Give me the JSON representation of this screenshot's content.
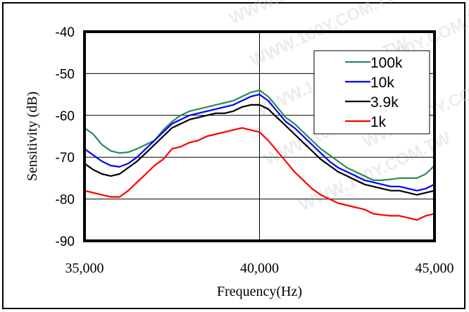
{
  "chart_data": {
    "type": "line",
    "title": "",
    "xlabel": "Frequency(Hz)",
    "ylabel": "Sensitivity  (dB)",
    "xlim": [
      35000,
      45000
    ],
    "ylim": [
      -90,
      -40
    ],
    "x_ticks": [
      {
        "value": 35000,
        "label": "35,000"
      },
      {
        "value": 40000,
        "label": "40,000"
      },
      {
        "value": 45000,
        "label": "45,000"
      }
    ],
    "y_ticks": [
      {
        "value": -40,
        "label": "-40"
      },
      {
        "value": -50,
        "label": "-50"
      },
      {
        "value": -60,
        "label": "-60"
      },
      {
        "value": -70,
        "label": "-70"
      },
      {
        "value": -80,
        "label": "-80"
      },
      {
        "value": -90,
        "label": "-90"
      }
    ],
    "grid": true,
    "legend_position": "top-right",
    "watermark": "WWW.100Y.COM.TW",
    "series": [
      {
        "name": "100k",
        "color": "#2e8b57",
        "x": [
          35000,
          35250,
          35500,
          35750,
          36000,
          36250,
          36500,
          36750,
          37000,
          37250,
          37500,
          37750,
          38000,
          38250,
          38500,
          38750,
          39000,
          39250,
          39500,
          39750,
          40000,
          40250,
          40500,
          40750,
          41000,
          41250,
          41500,
          41750,
          42000,
          42250,
          42500,
          42750,
          43000,
          43250,
          43500,
          43750,
          44000,
          44250,
          44500,
          44750,
          45000
        ],
        "y": [
          -63,
          -64.5,
          -67,
          -68.5,
          -69,
          -68.8,
          -68,
          -67,
          -66,
          -63.5,
          -61.5,
          -60,
          -59,
          -58.5,
          -58,
          -57.5,
          -57,
          -56.5,
          -55.5,
          -54.5,
          -54,
          -55.5,
          -58,
          -60.5,
          -62,
          -64,
          -66,
          -68,
          -69.5,
          -71,
          -72.5,
          -73.5,
          -74.5,
          -75.5,
          -75.5,
          -75.3,
          -75,
          -75,
          -75,
          -74,
          -72
        ]
      },
      {
        "name": "10k",
        "color": "#0000ff",
        "x": [
          35000,
          35250,
          35500,
          35750,
          36000,
          36250,
          36500,
          36750,
          37000,
          37250,
          37500,
          37750,
          38000,
          38250,
          38500,
          38750,
          39000,
          39250,
          39500,
          39750,
          40000,
          40250,
          40500,
          40750,
          41000,
          41250,
          41500,
          41750,
          42000,
          42250,
          42500,
          42750,
          43000,
          43250,
          43500,
          43750,
          44000,
          44250,
          44500,
          44750,
          45000
        ],
        "y": [
          -68,
          -69.5,
          -71,
          -72,
          -72.3,
          -71.5,
          -70,
          -68,
          -66,
          -64,
          -62,
          -61,
          -60,
          -59.5,
          -59,
          -58.5,
          -58,
          -57.5,
          -56.5,
          -55.5,
          -55,
          -56.5,
          -59,
          -61.5,
          -63,
          -65,
          -67,
          -69,
          -71,
          -72.5,
          -73.5,
          -74.5,
          -75.5,
          -76,
          -76.5,
          -77,
          -77,
          -77.5,
          -78,
          -77.5,
          -76.5
        ]
      },
      {
        "name": "3.9k",
        "color": "#000000",
        "x": [
          35000,
          35250,
          35500,
          35750,
          36000,
          36250,
          36500,
          36750,
          37000,
          37250,
          37500,
          37750,
          38000,
          38250,
          38500,
          38750,
          39000,
          39250,
          39500,
          39750,
          40000,
          40250,
          40500,
          40750,
          41000,
          41250,
          41500,
          41750,
          42000,
          42250,
          42500,
          42750,
          43000,
          43250,
          43500,
          43750,
          44000,
          44250,
          44500,
          44750,
          45000
        ],
        "y": [
          -71.5,
          -73,
          -74,
          -74.5,
          -74,
          -72.5,
          -71,
          -69,
          -67,
          -65,
          -63,
          -62,
          -61,
          -60.5,
          -60,
          -59.5,
          -59.5,
          -59,
          -58,
          -57.5,
          -57.5,
          -58.5,
          -60.5,
          -62.5,
          -64.5,
          -66.5,
          -68.5,
          -70.5,
          -72,
          -73.5,
          -74.5,
          -75.5,
          -76.5,
          -77,
          -77.5,
          -78,
          -78,
          -78.5,
          -79,
          -78.5,
          -78
        ]
      },
      {
        "name": "1k",
        "color": "#ff0000",
        "x": [
          35000,
          35250,
          35500,
          35750,
          36000,
          36250,
          36500,
          36750,
          37000,
          37250,
          37500,
          37750,
          38000,
          38250,
          38500,
          38750,
          39000,
          39250,
          39500,
          39750,
          40000,
          40250,
          40500,
          40750,
          41000,
          41250,
          41500,
          41750,
          42000,
          42250,
          42500,
          42750,
          43000,
          43250,
          43500,
          43750,
          44000,
          44250,
          44500,
          44750,
          45000
        ],
        "y": [
          -78,
          -78.5,
          -79,
          -79.5,
          -79.5,
          -78,
          -76,
          -74,
          -72,
          -70.5,
          -68,
          -67.5,
          -66.5,
          -66,
          -65,
          -64.5,
          -64,
          -63.5,
          -63,
          -63.5,
          -64,
          -66,
          -68.5,
          -71,
          -73.5,
          -75.5,
          -77.5,
          -79,
          -80,
          -81,
          -81.5,
          -82,
          -82.5,
          -83.5,
          -83.8,
          -84,
          -84,
          -84.5,
          -85,
          -84,
          -83.5
        ]
      }
    ]
  }
}
